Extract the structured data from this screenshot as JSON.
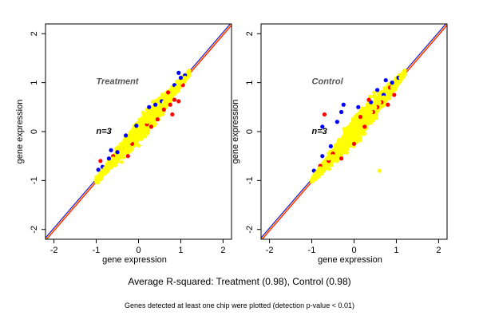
{
  "caption": {
    "summary": "Average R-squared: Treatment (0.98), Control (0.98)",
    "note": "Genes detected at least one chip were plotted (detection p-value < 0.01)"
  },
  "colors": {
    "background": "#ffffff",
    "axis": "#000000",
    "identity_line_red": "#ff0000",
    "identity_line_blue": "#0000ff",
    "identity_line_orange": "#ffa500",
    "points_red": "#ff0000",
    "points_blue": "#0000ff",
    "points_yellow": "#ffff00",
    "panel_label": "#555555"
  },
  "chart_data": [
    {
      "type": "scatter",
      "title": "",
      "panel_label": "Treatment",
      "annotation": "n=3",
      "xlabel": "gene expression",
      "ylabel": "gene expression",
      "xlim": [
        -2.2,
        2.2
      ],
      "ylim": [
        -2.2,
        2.2
      ],
      "xticks": [
        -2,
        -1,
        0,
        1,
        2
      ],
      "yticks": [
        -2,
        -1,
        0,
        1,
        2
      ],
      "xtick_labels": [
        "-2",
        "-1",
        "0",
        "1",
        "2"
      ],
      "ytick_labels": [
        "-2",
        "-1",
        "0",
        "1",
        "2"
      ],
      "grid": false,
      "reference_lines": [
        {
          "slope": 1,
          "intercept": 0,
          "color": "#ffa500"
        },
        {
          "slope": 1,
          "intercept": -0.03,
          "color": "#ff0000"
        },
        {
          "slope": 1,
          "intercept": 0.03,
          "color": "#0000ff"
        }
      ],
      "point_cloud": {
        "x_range": [
          -1.0,
          1.2
        ],
        "dominant_color": "yellow",
        "dispersion": 0.18
      },
      "series": [
        {
          "color": "blue",
          "points": [
            [
              -0.95,
              -0.78
            ],
            [
              -0.85,
              -0.72
            ],
            [
              -0.7,
              -0.55
            ],
            [
              -0.5,
              -0.42
            ],
            [
              -0.3,
              -0.08
            ],
            [
              -0.05,
              0.12
            ],
            [
              0.25,
              0.5
            ],
            [
              0.55,
              0.62
            ],
            [
              0.85,
              0.95
            ],
            [
              1.0,
              1.1
            ],
            [
              1.1,
              1.15
            ],
            [
              0.95,
              1.2
            ],
            [
              -0.65,
              -0.38
            ],
            [
              0.4,
              0.55
            ]
          ]
        },
        {
          "color": "red",
          "points": [
            [
              -0.9,
              -0.6
            ],
            [
              -0.6,
              -0.5
            ],
            [
              -0.4,
              -0.35
            ],
            [
              -0.15,
              -0.25
            ],
            [
              0.2,
              0.15
            ],
            [
              0.45,
              0.25
            ],
            [
              0.6,
              0.45
            ],
            [
              0.75,
              0.55
            ],
            [
              0.8,
              0.35
            ],
            [
              0.95,
              0.62
            ],
            [
              0.7,
              0.8
            ],
            [
              0.85,
              0.65
            ],
            [
              -0.25,
              -0.5
            ],
            [
              0.3,
              0.1
            ],
            [
              1.05,
              0.95
            ]
          ]
        },
        {
          "color": "yellow",
          "points": [
            [
              -1.0,
              -1.0
            ],
            [
              -0.9,
              -0.85
            ],
            [
              -0.8,
              -0.75
            ],
            [
              -0.7,
              -0.7
            ],
            [
              -0.6,
              -0.55
            ],
            [
              -0.5,
              -0.5
            ],
            [
              -0.4,
              -0.35
            ],
            [
              -0.3,
              -0.3
            ],
            [
              -0.2,
              -0.2
            ],
            [
              -0.1,
              -0.1
            ],
            [
              0.0,
              0.0
            ],
            [
              0.1,
              0.1
            ],
            [
              0.2,
              0.2
            ],
            [
              0.3,
              0.3
            ],
            [
              0.4,
              0.4
            ],
            [
              0.5,
              0.5
            ],
            [
              0.6,
              0.6
            ],
            [
              0.7,
              0.7
            ],
            [
              0.8,
              0.8
            ],
            [
              0.9,
              0.9
            ],
            [
              1.0,
              1.0
            ],
            [
              1.1,
              1.1
            ],
            [
              1.2,
              1.2
            ]
          ]
        }
      ]
    },
    {
      "type": "scatter",
      "title": "",
      "panel_label": "Control",
      "annotation": "n=3",
      "xlabel": "gene expression",
      "ylabel": "gene expression",
      "xlim": [
        -2.2,
        2.2
      ],
      "ylim": [
        -2.2,
        2.2
      ],
      "xticks": [
        -2,
        -1,
        0,
        1,
        2
      ],
      "yticks": [
        -2,
        -1,
        0,
        1,
        2
      ],
      "xtick_labels": [
        "-2",
        "-1",
        "0",
        "1",
        "2"
      ],
      "ytick_labels": [
        "-2",
        "-1",
        "0",
        "1",
        "2"
      ],
      "grid": false,
      "reference_lines": [
        {
          "slope": 1,
          "intercept": 0,
          "color": "#ffa500"
        },
        {
          "slope": 1,
          "intercept": -0.03,
          "color": "#ff0000"
        },
        {
          "slope": 1,
          "intercept": 0.03,
          "color": "#0000ff"
        }
      ],
      "point_cloud": {
        "x_range": [
          -1.0,
          1.2
        ],
        "dominant_color": "yellow",
        "dispersion": 0.2
      },
      "series": [
        {
          "color": "blue",
          "points": [
            [
              -0.95,
              -0.8
            ],
            [
              -0.75,
              -0.5
            ],
            [
              -0.55,
              -0.3
            ],
            [
              -0.4,
              0.2
            ],
            [
              -0.3,
              0.4
            ],
            [
              -0.25,
              0.55
            ],
            [
              0.1,
              0.5
            ],
            [
              0.4,
              0.6
            ],
            [
              0.7,
              0.75
            ],
            [
              0.9,
              1.0
            ],
            [
              1.05,
              1.1
            ],
            [
              0.75,
              1.05
            ],
            [
              -0.75,
              0.1
            ],
            [
              0.55,
              0.85
            ]
          ]
        },
        {
          "color": "red",
          "points": [
            [
              -0.7,
              0.35
            ],
            [
              -0.8,
              -0.7
            ],
            [
              -0.5,
              -0.45
            ],
            [
              -0.3,
              -0.55
            ],
            [
              0.0,
              -0.25
            ],
            [
              0.25,
              0.1
            ],
            [
              0.45,
              0.4
            ],
            [
              0.65,
              0.6
            ],
            [
              0.8,
              0.55
            ],
            [
              0.35,
              0.65
            ],
            [
              0.55,
              0.5
            ],
            [
              0.85,
              0.9
            ],
            [
              0.95,
              0.75
            ],
            [
              -0.6,
              -0.6
            ],
            [
              0.15,
              0.3
            ]
          ]
        },
        {
          "color": "yellow",
          "points": [
            [
              -1.0,
              -1.0
            ],
            [
              -0.9,
              -0.85
            ],
            [
              -0.8,
              -0.75
            ],
            [
              -0.7,
              -0.7
            ],
            [
              -0.6,
              -0.55
            ],
            [
              -0.5,
              -0.5
            ],
            [
              -0.4,
              -0.35
            ],
            [
              -0.3,
              -0.3
            ],
            [
              -0.2,
              -0.2
            ],
            [
              -0.1,
              -0.1
            ],
            [
              0.0,
              0.0
            ],
            [
              0.1,
              0.1
            ],
            [
              0.2,
              0.2
            ],
            [
              0.3,
              0.3
            ],
            [
              0.4,
              0.4
            ],
            [
              0.5,
              0.5
            ],
            [
              0.6,
              0.6
            ],
            [
              0.7,
              0.7
            ],
            [
              0.8,
              0.8
            ],
            [
              0.9,
              0.9
            ],
            [
              1.0,
              1.0
            ],
            [
              1.1,
              1.1
            ],
            [
              1.2,
              1.2
            ],
            [
              0.6,
              -0.8
            ]
          ]
        }
      ]
    }
  ]
}
